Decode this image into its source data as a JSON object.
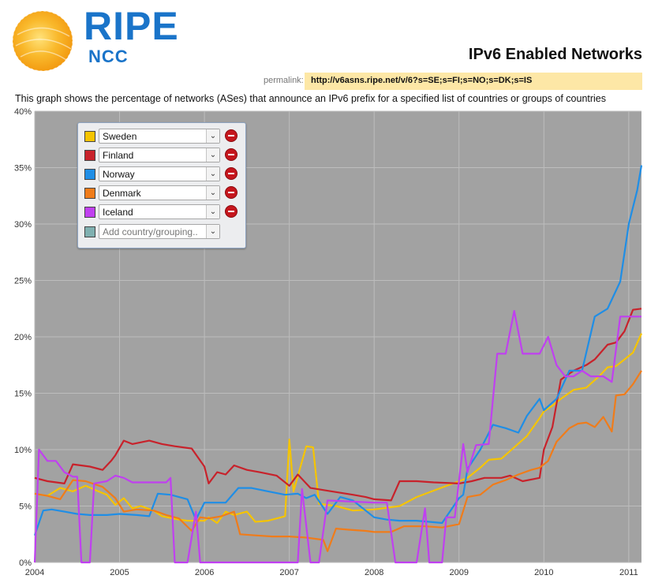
{
  "logo": {
    "text_main": "RIPE",
    "text_sub": "NCC"
  },
  "page_title": "IPv6 Enabled Networks",
  "permalink": {
    "label": "permalink:",
    "url": "http://v6asns.ripe.net/v/6?s=SE;s=FI;s=NO;s=DK;s=IS"
  },
  "description": "This graph shows the percentage of networks (ASes) that announce an IPv6 prefix for a specified list of countries or groups of countries",
  "legend": {
    "items": [
      {
        "name": "Sweden",
        "color": "#f5c400"
      },
      {
        "name": "Finland",
        "color": "#c8222b"
      },
      {
        "name": "Norway",
        "color": "#1f8ee6"
      },
      {
        "name": "Denmark",
        "color": "#f07c1a"
      },
      {
        "name": "Iceland",
        "color": "#c040f0"
      }
    ],
    "add_placeholder": "Add country/grouping..",
    "add_swatch_color": "#7fb0b0",
    "dropdown_glyph": "⌄"
  },
  "chart_data": {
    "type": "line",
    "ylim": [
      0,
      40
    ],
    "xlim": [
      2004.0,
      2011.15
    ],
    "yticks": [
      "0%",
      "5%",
      "10%",
      "15%",
      "20%",
      "25%",
      "30%",
      "35%",
      "40%"
    ],
    "xticks": [
      "2004",
      "2005",
      "2006",
      "2007",
      "2008",
      "2009",
      "2010",
      "2011"
    ],
    "background": "#a2a2a2",
    "grid": true,
    "legend_position": "top-left",
    "series": [
      {
        "name": "Sweden",
        "color": "#f5c400",
        "points": [
          [
            2004.0,
            6.1
          ],
          [
            2004.15,
            5.9
          ],
          [
            2004.3,
            6.6
          ],
          [
            2004.45,
            6.3
          ],
          [
            2004.6,
            6.8
          ],
          [
            2004.75,
            6.3
          ],
          [
            2004.85,
            6.0
          ],
          [
            2004.95,
            5.1
          ],
          [
            2005.05,
            5.7
          ],
          [
            2005.15,
            4.8
          ],
          [
            2005.25,
            5.0
          ],
          [
            2005.4,
            4.6
          ],
          [
            2005.5,
            4.1
          ],
          [
            2005.7,
            3.8
          ],
          [
            2005.8,
            3.7
          ],
          [
            2006.0,
            3.7
          ],
          [
            2006.05,
            4.0
          ],
          [
            2006.15,
            3.5
          ],
          [
            2006.25,
            4.5
          ],
          [
            2006.35,
            4.2
          ],
          [
            2006.5,
            4.5
          ],
          [
            2006.6,
            3.6
          ],
          [
            2006.75,
            3.7
          ],
          [
            2006.95,
            4.1
          ],
          [
            2007.0,
            10.9
          ],
          [
            2007.05,
            6.3
          ],
          [
            2007.2,
            10.3
          ],
          [
            2007.28,
            10.2
          ],
          [
            2007.35,
            5.2
          ],
          [
            2007.55,
            5.0
          ],
          [
            2007.75,
            4.6
          ],
          [
            2008.0,
            4.7
          ],
          [
            2008.3,
            5.0
          ],
          [
            2008.5,
            5.8
          ],
          [
            2008.75,
            6.5
          ],
          [
            2009.0,
            7.2
          ],
          [
            2009.1,
            7.5
          ],
          [
            2009.25,
            8.4
          ],
          [
            2009.35,
            9.1
          ],
          [
            2009.5,
            9.2
          ],
          [
            2009.65,
            10.2
          ],
          [
            2009.8,
            11.2
          ],
          [
            2009.95,
            12.8
          ],
          [
            2010.0,
            13.4
          ],
          [
            2010.1,
            13.9
          ],
          [
            2010.2,
            14.5
          ],
          [
            2010.35,
            15.3
          ],
          [
            2010.5,
            15.5
          ],
          [
            2010.65,
            16.5
          ],
          [
            2010.75,
            17.3
          ],
          [
            2010.85,
            17.4
          ],
          [
            2010.95,
            18.0
          ],
          [
            2011.05,
            18.6
          ],
          [
            2011.15,
            20.3
          ]
        ]
      },
      {
        "name": "Finland",
        "color": "#c8222b",
        "points": [
          [
            2004.0,
            7.5
          ],
          [
            2004.15,
            7.2
          ],
          [
            2004.35,
            7.0
          ],
          [
            2004.45,
            8.7
          ],
          [
            2004.65,
            8.5
          ],
          [
            2004.8,
            8.2
          ],
          [
            2004.9,
            9.0
          ],
          [
            2004.95,
            9.5
          ],
          [
            2005.05,
            10.8
          ],
          [
            2005.15,
            10.5
          ],
          [
            2005.35,
            10.8
          ],
          [
            2005.5,
            10.5
          ],
          [
            2005.65,
            10.3
          ],
          [
            2005.85,
            10.1
          ],
          [
            2006.0,
            8.5
          ],
          [
            2006.05,
            7.0
          ],
          [
            2006.15,
            8.0
          ],
          [
            2006.25,
            7.8
          ],
          [
            2006.35,
            8.6
          ],
          [
            2006.5,
            8.2
          ],
          [
            2006.65,
            8.0
          ],
          [
            2006.85,
            7.7
          ],
          [
            2007.0,
            6.8
          ],
          [
            2007.1,
            7.8
          ],
          [
            2007.25,
            6.6
          ],
          [
            2007.5,
            6.3
          ],
          [
            2007.75,
            6.0
          ],
          [
            2007.9,
            5.8
          ],
          [
            2008.0,
            5.6
          ],
          [
            2008.2,
            5.5
          ],
          [
            2008.3,
            7.2
          ],
          [
            2008.5,
            7.2
          ],
          [
            2008.7,
            7.1
          ],
          [
            2009.0,
            7.0
          ],
          [
            2009.15,
            7.2
          ],
          [
            2009.3,
            7.5
          ],
          [
            2009.5,
            7.5
          ],
          [
            2009.6,
            7.7
          ],
          [
            2009.75,
            7.2
          ],
          [
            2009.95,
            7.5
          ],
          [
            2010.0,
            10.0
          ],
          [
            2010.1,
            12.0
          ],
          [
            2010.2,
            16.2
          ],
          [
            2010.35,
            17.0
          ],
          [
            2010.5,
            17.5
          ],
          [
            2010.6,
            18.0
          ],
          [
            2010.75,
            19.3
          ],
          [
            2010.85,
            19.5
          ],
          [
            2010.95,
            20.5
          ],
          [
            2011.05,
            22.4
          ],
          [
            2011.15,
            22.5
          ]
        ]
      },
      {
        "name": "Norway",
        "color": "#1f8ee6",
        "points": [
          [
            2004.0,
            2.4
          ],
          [
            2004.1,
            4.6
          ],
          [
            2004.2,
            4.7
          ],
          [
            2004.35,
            4.5
          ],
          [
            2004.5,
            4.3
          ],
          [
            2004.65,
            4.2
          ],
          [
            2004.85,
            4.2
          ],
          [
            2005.0,
            4.3
          ],
          [
            2005.2,
            4.2
          ],
          [
            2005.35,
            4.1
          ],
          [
            2005.45,
            6.1
          ],
          [
            2005.6,
            6.0
          ],
          [
            2005.8,
            5.6
          ],
          [
            2005.9,
            3.8
          ],
          [
            2006.0,
            5.3
          ],
          [
            2006.25,
            5.3
          ],
          [
            2006.4,
            6.6
          ],
          [
            2006.55,
            6.6
          ],
          [
            2006.75,
            6.3
          ],
          [
            2006.95,
            6.0
          ],
          [
            2007.1,
            6.1
          ],
          [
            2007.2,
            5.7
          ],
          [
            2007.3,
            6.0
          ],
          [
            2007.45,
            4.3
          ],
          [
            2007.6,
            5.8
          ],
          [
            2007.75,
            5.5
          ],
          [
            2008.0,
            4.0
          ],
          [
            2008.15,
            3.8
          ],
          [
            2008.3,
            3.7
          ],
          [
            2008.5,
            3.7
          ],
          [
            2008.65,
            3.6
          ],
          [
            2008.8,
            3.5
          ],
          [
            2009.0,
            5.7
          ],
          [
            2009.05,
            6.0
          ],
          [
            2009.1,
            8.3
          ],
          [
            2009.25,
            10.0
          ],
          [
            2009.4,
            12.2
          ],
          [
            2009.55,
            11.9
          ],
          [
            2009.7,
            11.5
          ],
          [
            2009.8,
            13.0
          ],
          [
            2009.95,
            14.5
          ],
          [
            2010.0,
            13.5
          ],
          [
            2010.15,
            14.5
          ],
          [
            2010.3,
            17.0
          ],
          [
            2010.45,
            17.0
          ],
          [
            2010.6,
            21.8
          ],
          [
            2010.75,
            22.5
          ],
          [
            2010.9,
            24.9
          ],
          [
            2011.0,
            30.0
          ],
          [
            2011.1,
            33.0
          ],
          [
            2011.15,
            35.2
          ]
        ]
      },
      {
        "name": "Denmark",
        "color": "#f07c1a",
        "points": [
          [
            2004.0,
            6.1
          ],
          [
            2004.15,
            5.9
          ],
          [
            2004.3,
            5.6
          ],
          [
            2004.45,
            7.3
          ],
          [
            2004.6,
            7.2
          ],
          [
            2004.8,
            6.7
          ],
          [
            2004.95,
            5.7
          ],
          [
            2005.05,
            4.5
          ],
          [
            2005.2,
            4.7
          ],
          [
            2005.4,
            4.6
          ],
          [
            2005.55,
            4.2
          ],
          [
            2005.7,
            3.9
          ],
          [
            2005.85,
            2.8
          ],
          [
            2005.95,
            4.0
          ],
          [
            2006.05,
            3.9
          ],
          [
            2006.2,
            4.1
          ],
          [
            2006.35,
            4.5
          ],
          [
            2006.42,
            2.5
          ],
          [
            2006.6,
            2.4
          ],
          [
            2006.8,
            2.3
          ],
          [
            2007.0,
            2.3
          ],
          [
            2007.2,
            2.2
          ],
          [
            2007.4,
            2.0
          ],
          [
            2007.45,
            1.0
          ],
          [
            2007.55,
            3.0
          ],
          [
            2007.7,
            2.9
          ],
          [
            2007.9,
            2.8
          ],
          [
            2008.0,
            2.7
          ],
          [
            2008.2,
            2.7
          ],
          [
            2008.35,
            3.2
          ],
          [
            2008.6,
            3.2
          ],
          [
            2008.8,
            3.1
          ],
          [
            2009.0,
            3.4
          ],
          [
            2009.1,
            5.8
          ],
          [
            2009.25,
            6.0
          ],
          [
            2009.4,
            6.9
          ],
          [
            2009.55,
            7.3
          ],
          [
            2009.7,
            7.8
          ],
          [
            2009.85,
            8.2
          ],
          [
            2009.95,
            8.4
          ],
          [
            2010.05,
            9.0
          ],
          [
            2010.15,
            10.7
          ],
          [
            2010.3,
            11.9
          ],
          [
            2010.4,
            12.3
          ],
          [
            2010.5,
            12.4
          ],
          [
            2010.6,
            12.0
          ],
          [
            2010.7,
            12.9
          ],
          [
            2010.8,
            11.6
          ],
          [
            2010.85,
            14.8
          ],
          [
            2010.95,
            14.9
          ],
          [
            2011.05,
            15.8
          ],
          [
            2011.15,
            17.0
          ]
        ]
      },
      {
        "name": "Iceland",
        "color": "#c040f0",
        "points": [
          [
            2004.0,
            0.0
          ],
          [
            2004.05,
            10.0
          ],
          [
            2004.15,
            9.0
          ],
          [
            2004.25,
            9.0
          ],
          [
            2004.35,
            8.0
          ],
          [
            2004.45,
            7.6
          ],
          [
            2004.5,
            7.6
          ],
          [
            2004.55,
            0.0
          ],
          [
            2004.65,
            0.0
          ],
          [
            2004.7,
            7.0
          ],
          [
            2004.85,
            7.2
          ],
          [
            2004.95,
            7.7
          ],
          [
            2005.05,
            7.5
          ],
          [
            2005.15,
            7.1
          ],
          [
            2005.4,
            7.1
          ],
          [
            2005.55,
            7.1
          ],
          [
            2005.6,
            7.5
          ],
          [
            2005.65,
            0.0
          ],
          [
            2005.8,
            0.0
          ],
          [
            2005.9,
            4.5
          ],
          [
            2005.95,
            0.0
          ],
          [
            2006.3,
            0.0
          ],
          [
            2006.8,
            0.0
          ],
          [
            2007.1,
            0.0
          ],
          [
            2007.15,
            6.5
          ],
          [
            2007.25,
            0.0
          ],
          [
            2007.35,
            0.0
          ],
          [
            2007.45,
            5.5
          ],
          [
            2008.0,
            5.3
          ],
          [
            2008.15,
            5.3
          ],
          [
            2008.25,
            0.0
          ],
          [
            2008.5,
            0.0
          ],
          [
            2008.6,
            4.8
          ],
          [
            2008.65,
            0.0
          ],
          [
            2008.8,
            0.0
          ],
          [
            2008.85,
            4.0
          ],
          [
            2008.95,
            4.0
          ],
          [
            2009.05,
            10.5
          ],
          [
            2009.1,
            8.0
          ],
          [
            2009.2,
            10.4
          ],
          [
            2009.35,
            10.5
          ],
          [
            2009.45,
            18.5
          ],
          [
            2009.55,
            18.5
          ],
          [
            2009.65,
            22.3
          ],
          [
            2009.75,
            18.5
          ],
          [
            2009.95,
            18.5
          ],
          [
            2010.05,
            20.0
          ],
          [
            2010.15,
            17.5
          ],
          [
            2010.25,
            16.5
          ],
          [
            2010.35,
            16.5
          ],
          [
            2010.45,
            17.0
          ],
          [
            2010.55,
            16.5
          ],
          [
            2010.7,
            16.5
          ],
          [
            2010.8,
            16.0
          ],
          [
            2010.9,
            21.8
          ],
          [
            2011.15,
            21.8
          ]
        ]
      }
    ]
  }
}
